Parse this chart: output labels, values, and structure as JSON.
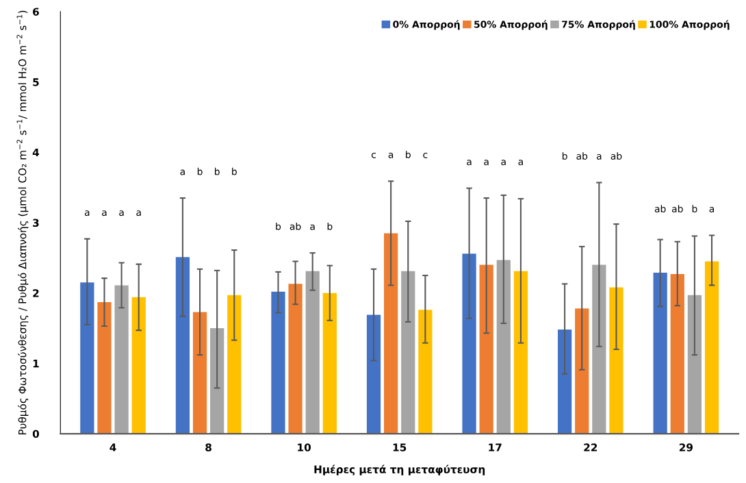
{
  "chart_data": {
    "type": "bar",
    "xlabel": "Ημέρες μετά τη μεταφύτευση",
    "ylabel": "Ρυθμός Φωτοσύνθεσης / Ρυθμό Διαπνοής (μmol CO₂ m$^{−2}$ s$^{−1}$/ mmol H₂O m$^{−2}$ s$^{−1}$)",
    "categories": [
      "4",
      "8",
      "10",
      "15",
      "17",
      "22",
      "29"
    ],
    "ylim": [
      0,
      6
    ],
    "yticks": [
      0,
      1,
      2,
      3,
      4,
      5,
      6
    ],
    "grid": false,
    "legend": "top right",
    "series": [
      {
        "name": "0% Απορροή",
        "color": "#4472c4",
        "values": [
          2.15,
          2.51,
          2.02,
          1.69,
          2.56,
          1.48,
          2.29
        ],
        "errors": [
          [
            1.55,
            2.77
          ],
          [
            1.67,
            3.35
          ],
          [
            1.72,
            2.3
          ],
          [
            1.04,
            2.34
          ],
          [
            1.64,
            3.49
          ],
          [
            0.85,
            2.13
          ],
          [
            1.81,
            2.76
          ]
        ]
      },
      {
        "name": "50% Απορροή",
        "color": "#ed7d31",
        "values": [
          1.87,
          1.73,
          2.13,
          2.85,
          2.4,
          1.78,
          2.27
        ],
        "errors": [
          [
            1.53,
            2.21
          ],
          [
            1.12,
            2.34
          ],
          [
            1.84,
            2.45
          ],
          [
            2.11,
            3.59
          ],
          [
            1.43,
            3.35
          ],
          [
            0.91,
            2.66
          ],
          [
            1.82,
            2.73
          ]
        ]
      },
      {
        "name": "75% Απορροή",
        "color": "#a5a5a5",
        "values": [
          2.11,
          1.5,
          2.31,
          2.31,
          2.47,
          2.4,
          1.97
        ],
        "errors": [
          [
            1.79,
            2.43
          ],
          [
            0.65,
            2.32
          ],
          [
            2.04,
            2.57
          ],
          [
            1.59,
            3.02
          ],
          [
            1.57,
            3.39
          ],
          [
            1.24,
            3.57
          ],
          [
            1.12,
            2.81
          ]
        ]
      },
      {
        "name": "100% Απορροή",
        "color": "#ffc000",
        "values": [
          1.94,
          1.97,
          2.0,
          1.76,
          2.31,
          2.08,
          2.45
        ],
        "errors": [
          [
            1.47,
            2.41
          ],
          [
            1.33,
            2.61
          ],
          [
            1.61,
            2.39
          ],
          [
            1.29,
            2.25
          ],
          [
            1.29,
            3.34
          ],
          [
            1.2,
            2.98
          ],
          [
            2.11,
            2.82
          ]
        ]
      }
    ],
    "annotations": [
      "a",
      "a",
      "a",
      "a",
      "a",
      "b",
      "b",
      "b",
      "b",
      "ab",
      "a",
      "b",
      "c",
      "a",
      "b",
      "c",
      "a",
      "a",
      "a",
      "a",
      "b",
      "ab",
      "a",
      "ab",
      "ab",
      "ab",
      "b",
      "a"
    ]
  }
}
